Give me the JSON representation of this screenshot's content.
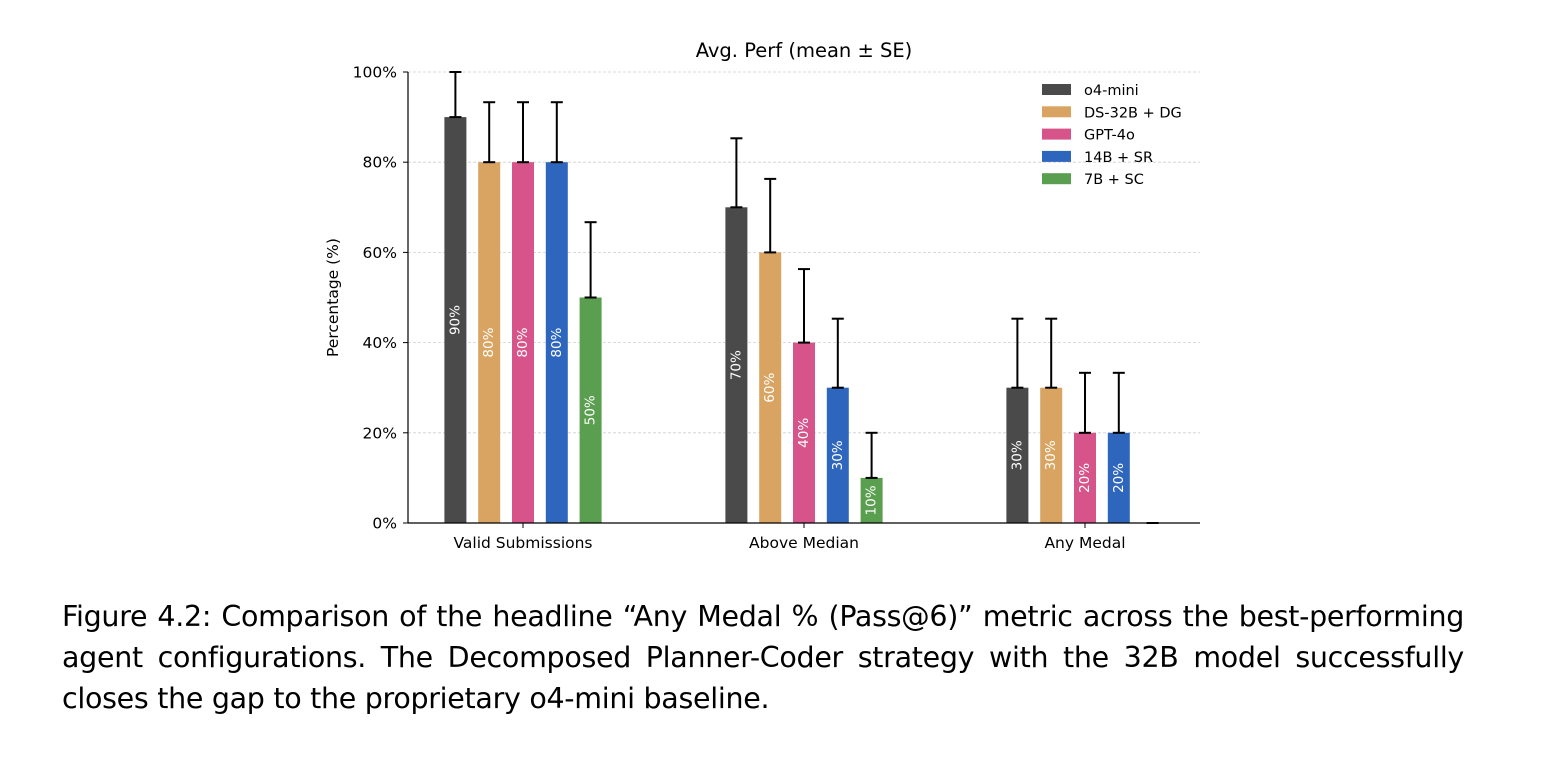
{
  "chart_data": {
    "type": "bar",
    "title": "Avg. Perf (mean ± SE)",
    "xlabel": "",
    "ylabel": "Percentage (%)",
    "ylim": [
      0,
      100
    ],
    "yticks": [
      "0%",
      "20%",
      "40%",
      "60%",
      "80%",
      "100%"
    ],
    "grid": true,
    "legend_position": "top-right",
    "categories": [
      "Valid Submissions",
      "Above Median",
      "Any Medal"
    ],
    "series": [
      {
        "name": "o4-mini",
        "color": "#4a4a4a",
        "values": [
          90,
          70,
          30
        ],
        "se": [
          10,
          15.3,
          15.3
        ],
        "labels": [
          "90%",
          "70%",
          "30%"
        ]
      },
      {
        "name": "DS-32B + DG",
        "color": "#d9a461",
        "values": [
          80,
          60,
          30
        ],
        "se": [
          13.3,
          16.3,
          15.3
        ],
        "labels": [
          "80%",
          "60%",
          "30%"
        ]
      },
      {
        "name": "GPT-4o",
        "color": "#d6548a",
        "values": [
          80,
          40,
          20
        ],
        "se": [
          13.3,
          16.3,
          13.3
        ],
        "labels": [
          "80%",
          "40%",
          "20%"
        ]
      },
      {
        "name": "14B + SR",
        "color": "#2f66bd",
        "values": [
          80,
          30,
          20
        ],
        "se": [
          13.3,
          15.3,
          13.3
        ],
        "labels": [
          "80%",
          "30%",
          "20%"
        ]
      },
      {
        "name": "7B + SC",
        "color": "#5a9e4f",
        "values": [
          50,
          10,
          0
        ],
        "se": [
          16.7,
          10,
          0
        ],
        "labels": [
          "50%",
          "10%",
          ""
        ]
      }
    ]
  },
  "caption": "Figure 4.2: Comparison of the headline “Any Medal % (Pass@6)” metric across the best-performing agent configurations. The Decomposed Planner-Coder strategy with the 32B model successfully closes the gap to the proprietary o4-mini baseline."
}
